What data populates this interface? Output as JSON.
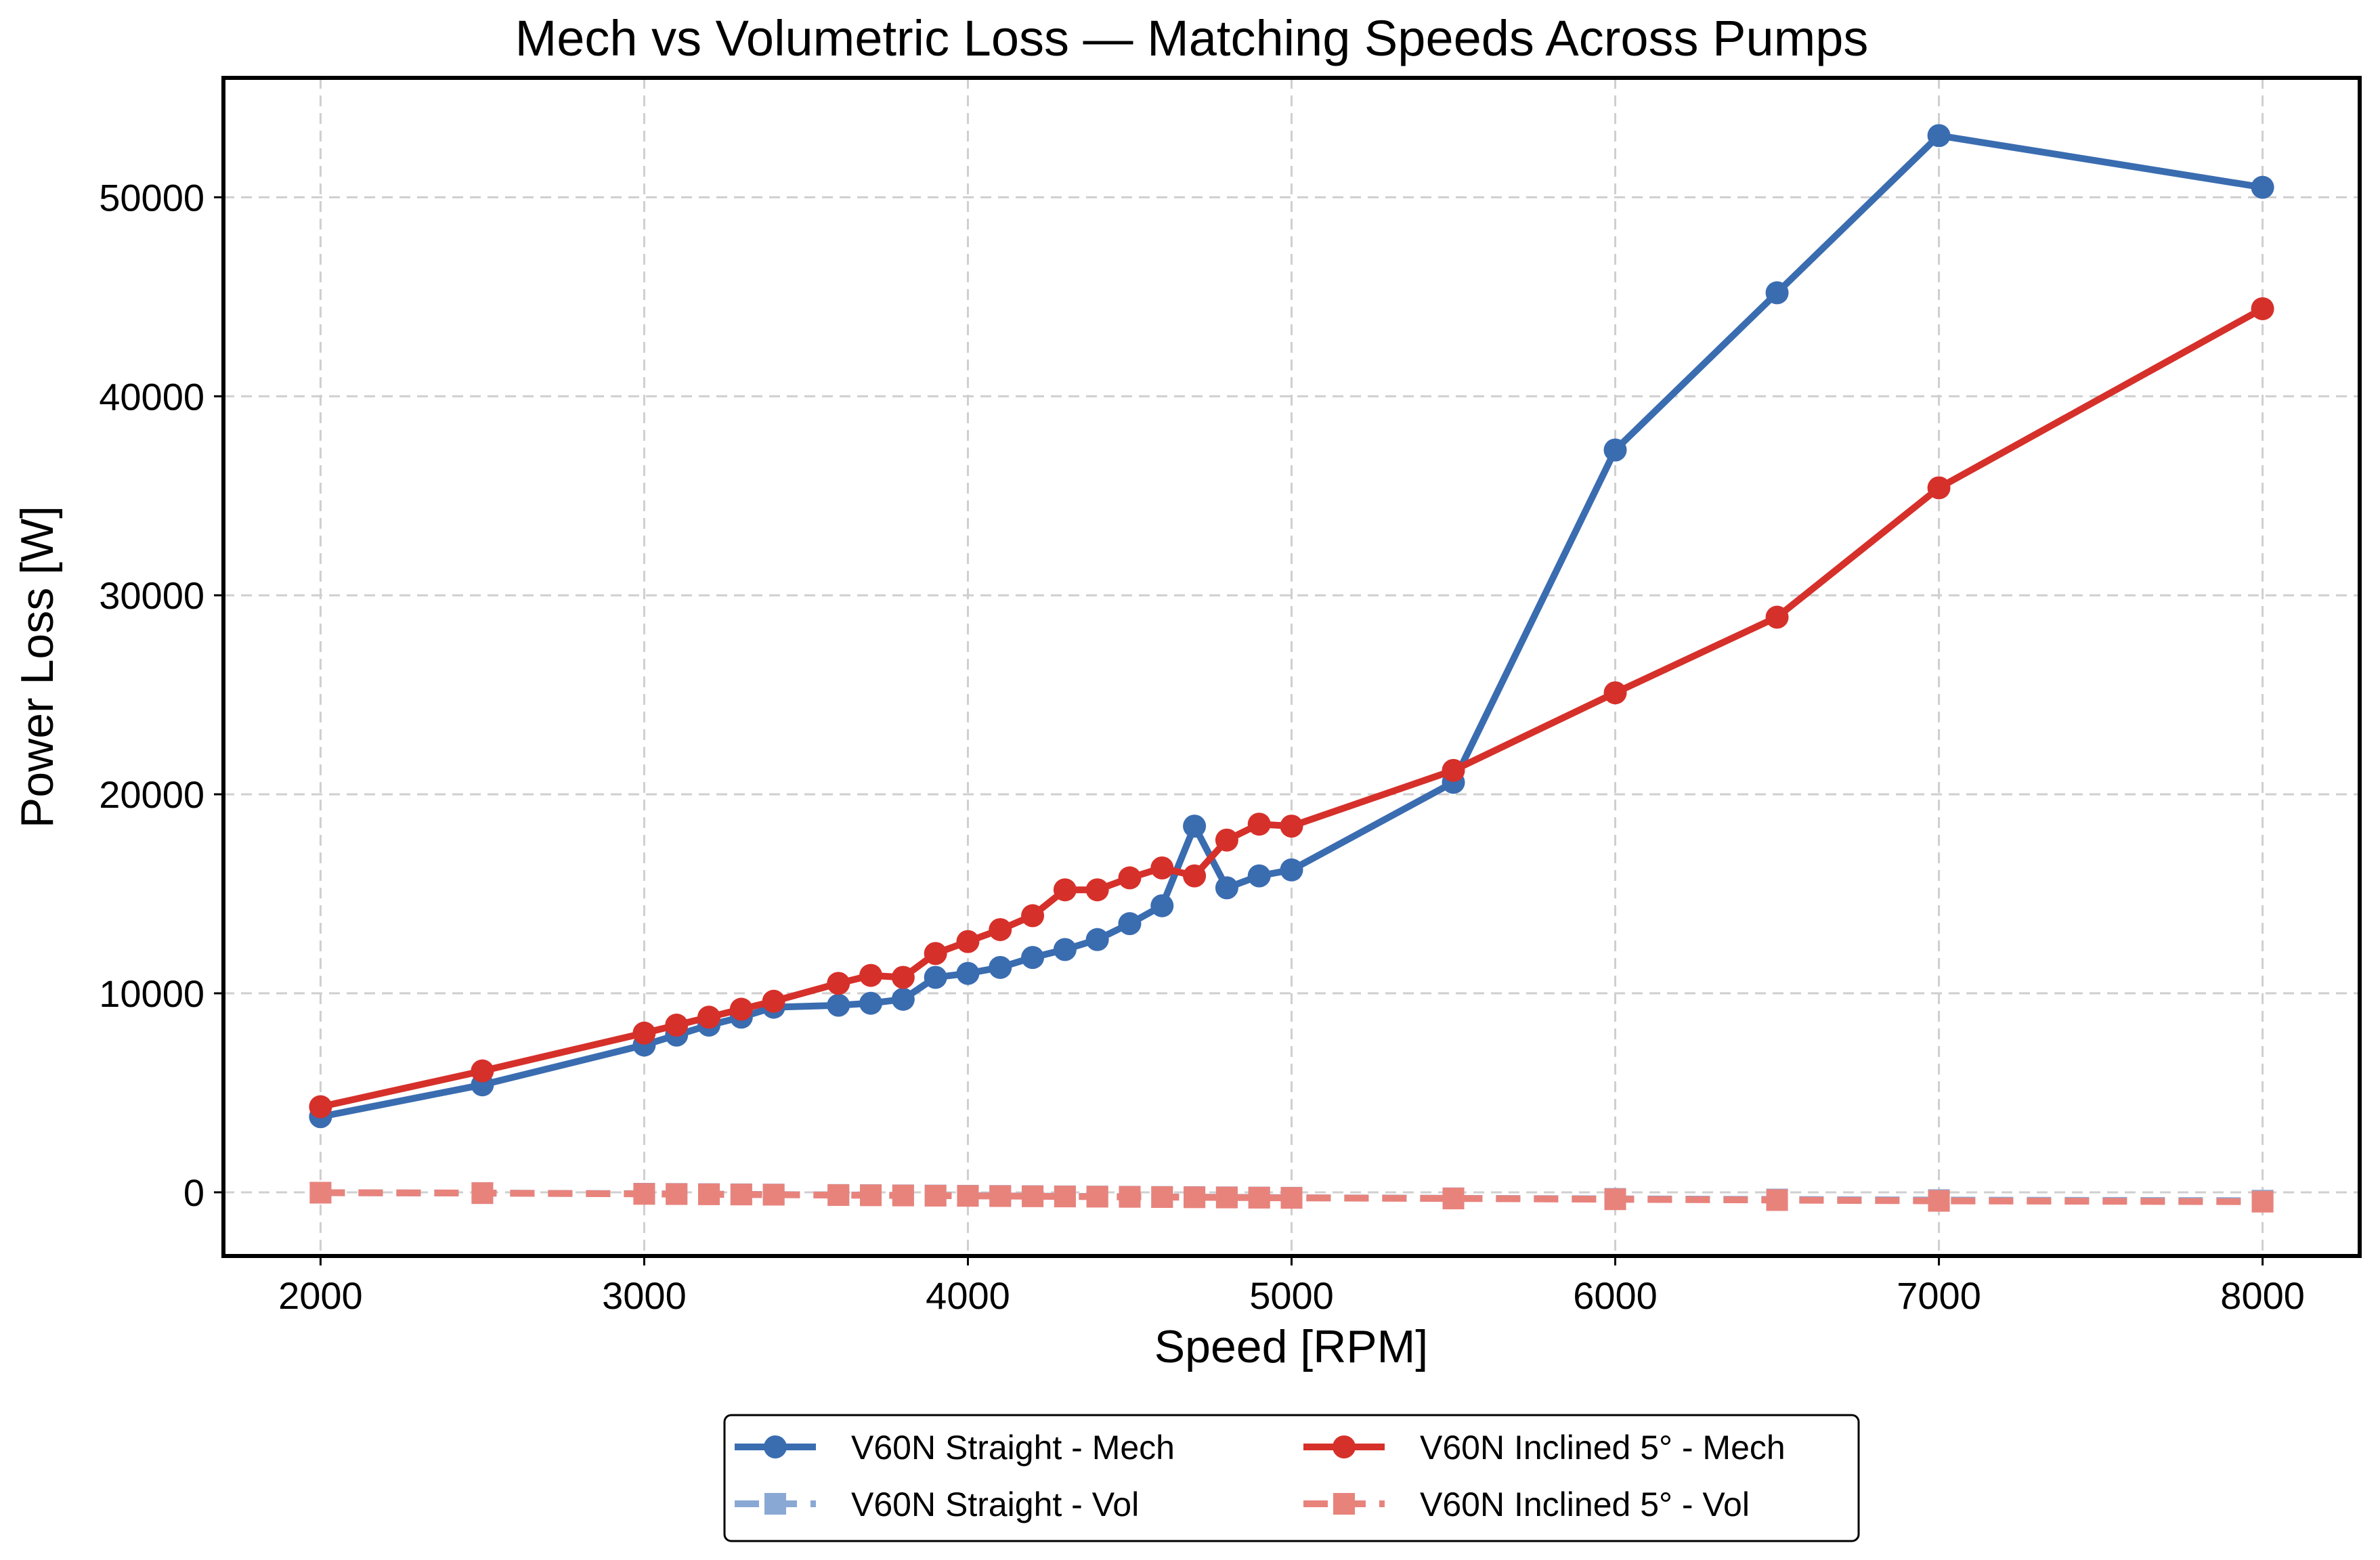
{
  "chart_data": {
    "type": "line",
    "title": "Mech vs Volumetric Loss — Matching Speeds Across Pumps",
    "xlabel": "Speed [RPM]",
    "ylabel": "Power Loss [W]",
    "xlim": [
      1700,
      8300
    ],
    "ylim": [
      -3200,
      56000
    ],
    "xticks": [
      2000,
      3000,
      4000,
      5000,
      6000,
      7000,
      8000
    ],
    "yticks": [
      0,
      10000,
      20000,
      30000,
      40000,
      50000
    ],
    "grid": true,
    "legend_position": "bottom-center",
    "colors": {
      "straight_mech": "#3a6cb0",
      "straight_vol": "#8aa8d4",
      "inclined_mech": "#d6302a",
      "inclined_vol": "#e8837c"
    },
    "series": [
      {
        "name": "V60N Straight - Mech",
        "style": "solid",
        "marker": "circle",
        "color": "#3a6cb0",
        "x": [
          2000,
          2500,
          3000,
          3100,
          3200,
          3300,
          3400,
          3600,
          3700,
          3800,
          3900,
          4000,
          4100,
          4200,
          4300,
          4400,
          4500,
          4600,
          4700,
          4800,
          4900,
          5000,
          5500,
          6000,
          6500,
          7000,
          8000
        ],
        "y": [
          3800,
          5400,
          7400,
          7900,
          8400,
          8800,
          9300,
          9400,
          9500,
          9700,
          10800,
          11000,
          11300,
          11800,
          12200,
          12700,
          13500,
          14400,
          18400,
          15300,
          15900,
          16200,
          20600,
          37300,
          45200,
          53100,
          50500
        ]
      },
      {
        "name": "V60N Straight - Vol",
        "style": "dashed",
        "marker": "square",
        "color": "#8aa8d4",
        "x": [
          2000,
          2500,
          3000,
          3100,
          3200,
          3300,
          3400,
          3600,
          3700,
          3800,
          3900,
          4000,
          4100,
          4200,
          4300,
          4400,
          4500,
          4600,
          4700,
          4800,
          4900,
          5000,
          5500,
          6000,
          6500,
          7000,
          8000
        ],
        "y": [
          -20,
          -40,
          -70,
          -80,
          -90,
          -100,
          -110,
          -130,
          -140,
          -150,
          -160,
          -170,
          -180,
          -190,
          -200,
          -210,
          -220,
          -230,
          -240,
          -250,
          -260,
          -270,
          -300,
          -330,
          -360,
          -390,
          -420
        ]
      },
      {
        "name": "V60N Inclined 5° - Mech",
        "style": "solid",
        "marker": "circle",
        "color": "#d6302a",
        "x": [
          2000,
          2500,
          3000,
          3100,
          3200,
          3300,
          3400,
          3600,
          3700,
          3800,
          3900,
          4000,
          4100,
          4200,
          4300,
          4400,
          4500,
          4600,
          4700,
          4800,
          4900,
          5000,
          5500,
          6000,
          6500,
          7000,
          8000
        ],
        "y": [
          4300,
          6100,
          8000,
          8400,
          8800,
          9200,
          9600,
          10500,
          10900,
          10800,
          12000,
          12600,
          13200,
          13900,
          15200,
          15200,
          15800,
          16300,
          15900,
          17700,
          18500,
          18400,
          21200,
          25100,
          28900,
          35400,
          44400
        ]
      },
      {
        "name": "V60N Inclined 5° - Vol",
        "style": "dashed",
        "marker": "square",
        "color": "#e8837c",
        "x": [
          2000,
          2500,
          3000,
          3100,
          3200,
          3300,
          3400,
          3600,
          3700,
          3800,
          3900,
          4000,
          4100,
          4200,
          4300,
          4400,
          4500,
          4600,
          4700,
          4800,
          4900,
          5000,
          5500,
          6000,
          6500,
          7000,
          8000
        ],
        "y": [
          -20,
          -40,
          -80,
          -90,
          -100,
          -110,
          -120,
          -140,
          -150,
          -160,
          -170,
          -180,
          -190,
          -200,
          -210,
          -220,
          -230,
          -240,
          -250,
          -260,
          -270,
          -280,
          -310,
          -350,
          -390,
          -430,
          -470
        ]
      }
    ]
  }
}
